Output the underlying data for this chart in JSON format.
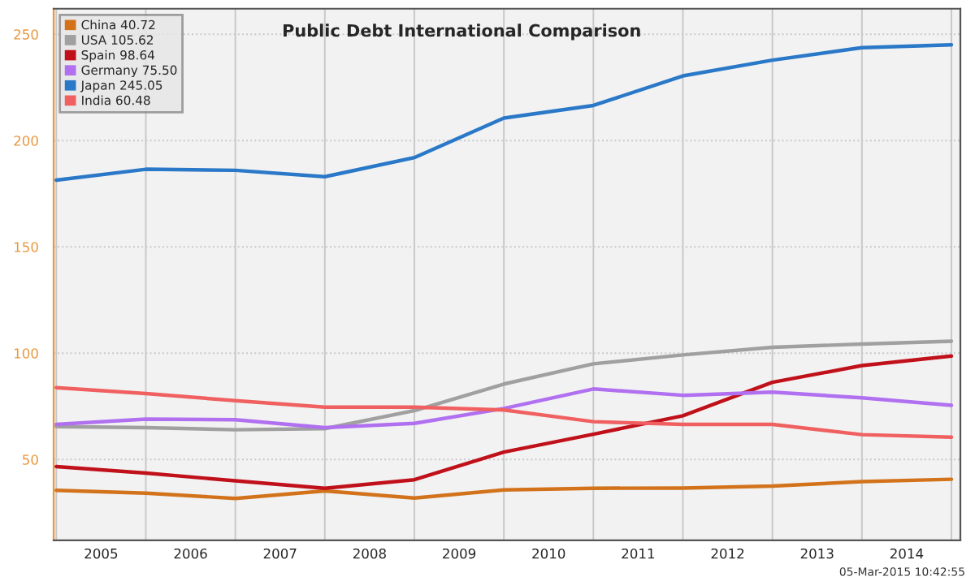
{
  "chart_data": {
    "type": "line",
    "title": "Public Debt International Comparison",
    "x": [
      2005,
      2006,
      2007,
      2008,
      2009,
      2010,
      2011,
      2012,
      2013,
      2014,
      2015
    ],
    "series": [
      {
        "name": "China 40.72",
        "color": "#d2731c",
        "values": [
          35.5,
          34.2,
          31.7,
          35.2,
          31.9,
          35.7,
          36.5,
          36.6,
          37.5,
          39.6,
          40.72
        ]
      },
      {
        "name": "USA 105.62",
        "color": "#a0a0a0",
        "values": [
          65.5,
          65,
          64,
          64.5,
          73,
          85.5,
          95,
          99.2,
          102.8,
          104.3,
          105.62
        ]
      },
      {
        "name": "Spain 98.64",
        "color": "#c0101a",
        "values": [
          46.7,
          43.6,
          40,
          36.5,
          40.5,
          53.5,
          61.9,
          70.6,
          86.3,
          94.2,
          98.64
        ]
      },
      {
        "name": "Germany 75.50",
        "color": "#b070f0",
        "values": [
          66.5,
          69,
          68.7,
          65,
          67,
          74,
          83.2,
          80.2,
          81.7,
          79,
          75.5
        ]
      },
      {
        "name": "Japan 245.05",
        "color": "#2a78c8",
        "values": [
          181.4,
          186.5,
          186,
          183,
          192,
          210.6,
          216.5,
          230.4,
          237.8,
          243.7,
          245.05
        ]
      },
      {
        "name": "India 60.48",
        "color": "#f06060",
        "values": [
          83.8,
          81,
          77.7,
          74.6,
          74.6,
          73.3,
          67.8,
          66.5,
          66.5,
          61.7,
          60.48
        ]
      }
    ],
    "xlim": [
      2004.97,
      2015.1
    ],
    "xticks": [
      {
        "value": 2005,
        "label": null
      },
      {
        "value": 2005.5,
        "label": "2005"
      },
      {
        "value": 2006,
        "label": null
      },
      {
        "value": 2006.5,
        "label": "2006"
      },
      {
        "value": 2007,
        "label": null
      },
      {
        "value": 2007.5,
        "label": "2007"
      },
      {
        "value": 2008,
        "label": null
      },
      {
        "value": 2008.5,
        "label": "2008"
      },
      {
        "value": 2009,
        "label": null
      },
      {
        "value": 2009.5,
        "label": "2009"
      },
      {
        "value": 2010,
        "label": null
      },
      {
        "value": 2010.5,
        "label": "2010"
      },
      {
        "value": 2011,
        "label": null
      },
      {
        "value": 2011.5,
        "label": "2011"
      },
      {
        "value": 2012,
        "label": null
      },
      {
        "value": 2012.5,
        "label": "2012"
      },
      {
        "value": 2013,
        "label": null
      },
      {
        "value": 2013.5,
        "label": "2013"
      },
      {
        "value": 2014,
        "label": null
      },
      {
        "value": 2014.5,
        "label": "2014"
      },
      {
        "value": 2015,
        "label": null
      }
    ],
    "ylim": [
      12,
      262
    ],
    "yticks": [
      50,
      100,
      150,
      200,
      250
    ],
    "grid": true,
    "legend": "top left",
    "marker": "none",
    "line_style": "solid",
    "annotations": [
      "05-Mar-2015 10:42:55"
    ]
  }
}
